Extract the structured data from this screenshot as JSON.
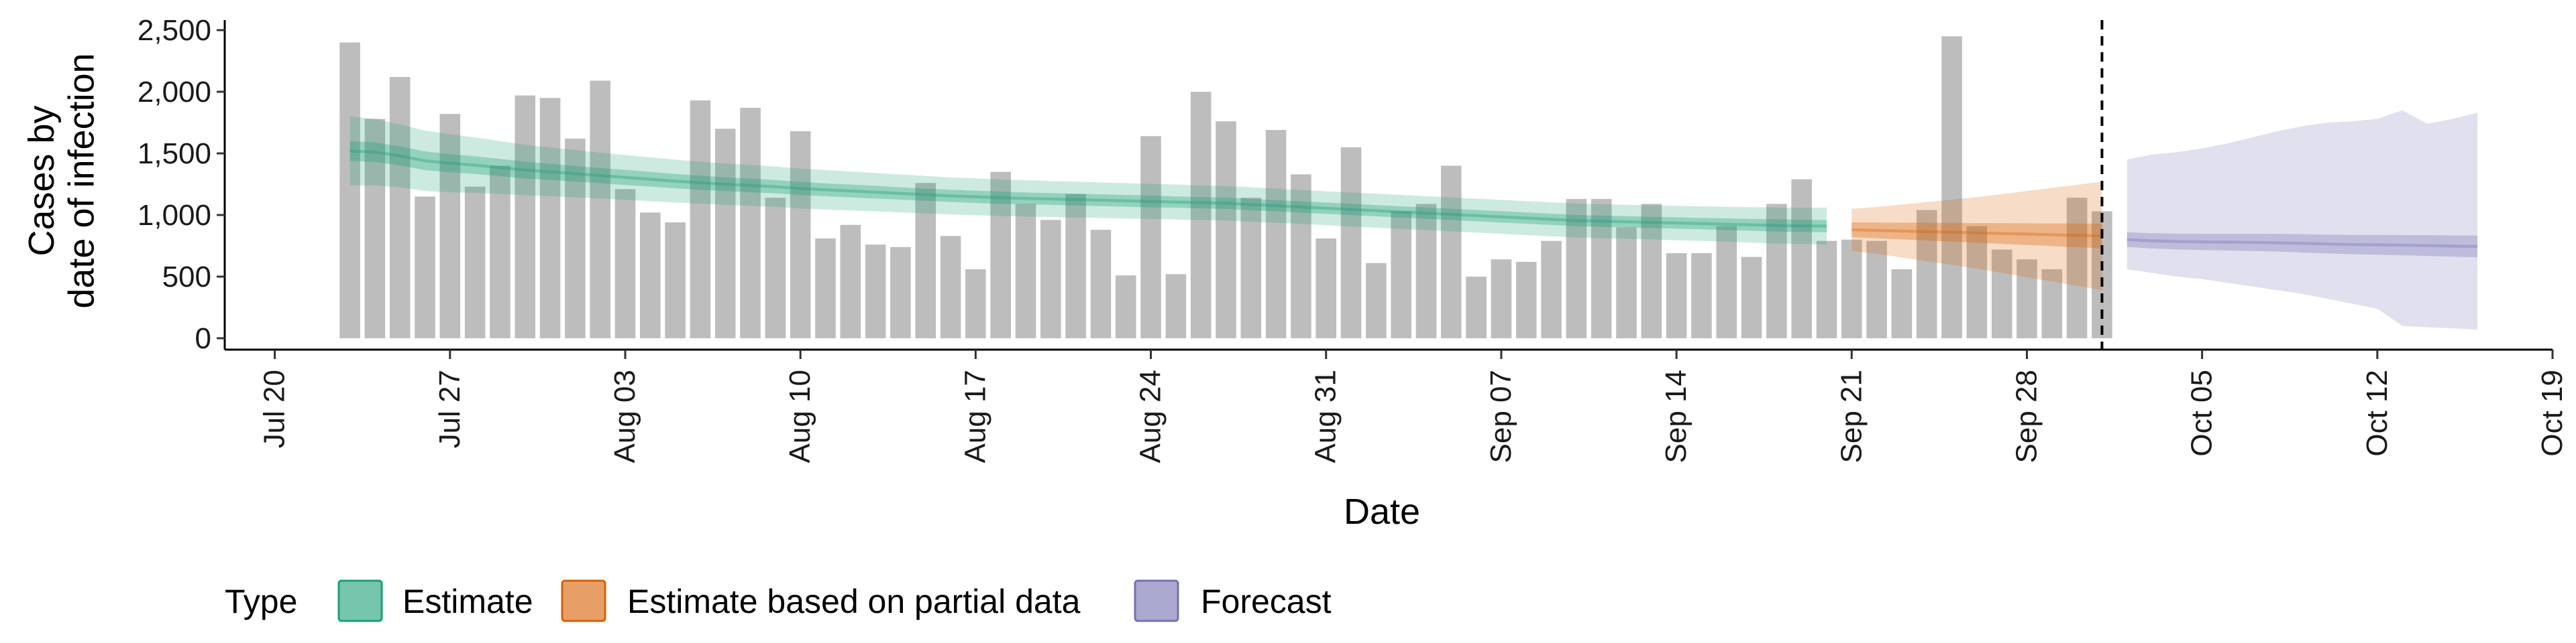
{
  "chart_data": {
    "type": "bar",
    "xlabel": "Date",
    "ylabel_lines": [
      "Cases by",
      "date of infection"
    ],
    "ylim": [
      0,
      2500
    ],
    "yticks": [
      {
        "value": 0,
        "label": "0"
      },
      {
        "value": 500,
        "label": "500"
      },
      {
        "value": 1000,
        "label": "1,000"
      },
      {
        "value": 1500,
        "label": "1,500"
      },
      {
        "value": 2000,
        "label": "2,000"
      },
      {
        "value": 2500,
        "label": "2,500"
      }
    ],
    "xticks": [
      {
        "date": "2020-07-20",
        "label": "Jul 20"
      },
      {
        "date": "2020-07-27",
        "label": "Jul 27"
      },
      {
        "date": "2020-08-03",
        "label": "Aug 03"
      },
      {
        "date": "2020-08-10",
        "label": "Aug 10"
      },
      {
        "date": "2020-08-17",
        "label": "Aug 17"
      },
      {
        "date": "2020-08-24",
        "label": "Aug 24"
      },
      {
        "date": "2020-08-31",
        "label": "Aug 31"
      },
      {
        "date": "2020-09-07",
        "label": "Sep 07"
      },
      {
        "date": "2020-09-14",
        "label": "Sep 14"
      },
      {
        "date": "2020-09-21",
        "label": "Sep 21"
      },
      {
        "date": "2020-09-28",
        "label": "Sep 28"
      },
      {
        "date": "2020-10-05",
        "label": "Oct 05"
      },
      {
        "date": "2020-10-12",
        "label": "Oct 12"
      },
      {
        "date": "2020-10-19",
        "label": "Oct 19"
      }
    ],
    "xlim": [
      "2020-07-18",
      "2020-10-19"
    ],
    "bar_color": "#bdbdbd",
    "bar_dates_start": "2020-07-23",
    "bar_values": [
      2400,
      1780,
      2120,
      1150,
      1820,
      1230,
      1400,
      1970,
      1950,
      1620,
      2090,
      1210,
      1020,
      940,
      1930,
      1700,
      1870,
      1140,
      1680,
      810,
      920,
      760,
      740,
      1260,
      830,
      560,
      1350,
      1090,
      960,
      1170,
      880,
      510,
      1640,
      520,
      2000,
      1760,
      1140,
      1690,
      1330,
      810,
      1550,
      610,
      1030,
      1090,
      1400,
      500,
      640,
      620,
      790,
      1130,
      1130,
      900,
      1090,
      690,
      690,
      910,
      660,
      1090,
      1290,
      790,
      800,
      790,
      560,
      1040,
      2450,
      910,
      720,
      640,
      560,
      1140,
      1030
    ],
    "vline_date": "2020-10-01",
    "series": [
      {
        "name": "Estimate",
        "color": "#1b9e77",
        "dates_start": "2020-07-23",
        "median": [
          1520,
          1510,
          1480,
          1440,
          1420,
          1405,
          1385,
          1365,
          1350,
          1335,
          1320,
          1305,
          1290,
          1275,
          1262,
          1250,
          1240,
          1230,
          1215,
          1205,
          1195,
          1185,
          1175,
          1165,
          1155,
          1148,
          1140,
          1135,
          1130,
          1125,
          1120,
          1115,
          1110,
          1105,
          1100,
          1095,
          1085,
          1075,
          1065,
          1055,
          1045,
          1035,
          1025,
          1015,
          1005,
          995,
          985,
          975,
          965,
          955,
          950,
          945,
          940,
          935,
          930,
          925,
          920,
          915,
          912,
          910
        ],
        "inner_half_width": [
          80,
          80,
          78,
          76,
          74,
          72,
          70,
          68,
          66,
          64,
          62,
          62,
          60,
          58,
          58,
          56,
          56,
          54,
          54,
          52,
          52,
          52,
          50,
          50,
          50,
          50,
          50,
          48,
          48,
          48,
          48,
          48,
          48,
          46,
          46,
          46,
          46,
          46,
          46,
          46,
          46,
          46,
          46,
          46,
          46,
          46,
          46,
          46,
          46,
          46,
          46,
          46,
          46,
          46,
          46,
          48,
          48,
          50,
          50,
          50
        ],
        "outer_half_width": [
          280,
          270,
          255,
          245,
          235,
          225,
          215,
          205,
          198,
          192,
          186,
          182,
          178,
          174,
          170,
          168,
          166,
          164,
          162,
          160,
          158,
          156,
          154,
          152,
          150,
          150,
          148,
          148,
          146,
          146,
          144,
          144,
          142,
          142,
          140,
          140,
          140,
          138,
          138,
          138,
          138,
          138,
          138,
          138,
          138,
          138,
          138,
          138,
          138,
          138,
          138,
          138,
          138,
          140,
          140,
          142,
          144,
          146,
          148,
          150
        ]
      },
      {
        "name": "Estimate based on partial data",
        "color": "#d95f02",
        "dates_start": "2020-09-21",
        "median": [
          880,
          875,
          870,
          865,
          860,
          855,
          850,
          845,
          840,
          835,
          830
        ],
        "inner_half_width": [
          60,
          64,
          68,
          72,
          76,
          80,
          84,
          88,
          92,
          96,
          100
        ],
        "outer_half_width": [
          170,
          190,
          215,
          240,
          265,
          290,
          320,
          350,
          380,
          410,
          440
        ]
      },
      {
        "name": "Forecast",
        "color": "#7570b3",
        "dates_start": "2020-10-02",
        "median": [
          800,
          790,
          785,
          782,
          780,
          778,
          775,
          770,
          765,
          760,
          758,
          755,
          752,
          748,
          745
        ],
        "inner_half_width": [
          60,
          62,
          64,
          66,
          68,
          70,
          72,
          74,
          76,
          78,
          80,
          82,
          84,
          86,
          88
        ],
        "outer_range": [
          [
            560,
            1450
          ],
          [
            530,
            1490
          ],
          [
            500,
            1510
          ],
          [
            480,
            1540
          ],
          [
            450,
            1580
          ],
          [
            420,
            1630
          ],
          [
            390,
            1680
          ],
          [
            360,
            1720
          ],
          [
            320,
            1750
          ],
          [
            280,
            1760
          ],
          [
            240,
            1780
          ],
          [
            100,
            1850
          ],
          [
            90,
            1740
          ],
          [
            80,
            1780
          ],
          [
            70,
            1830
          ]
        ]
      }
    ],
    "legend": {
      "title": "Type",
      "placement": "bottom-left",
      "entries": [
        "Estimate",
        "Estimate based on partial data",
        "Forecast"
      ]
    },
    "grid": false
  }
}
